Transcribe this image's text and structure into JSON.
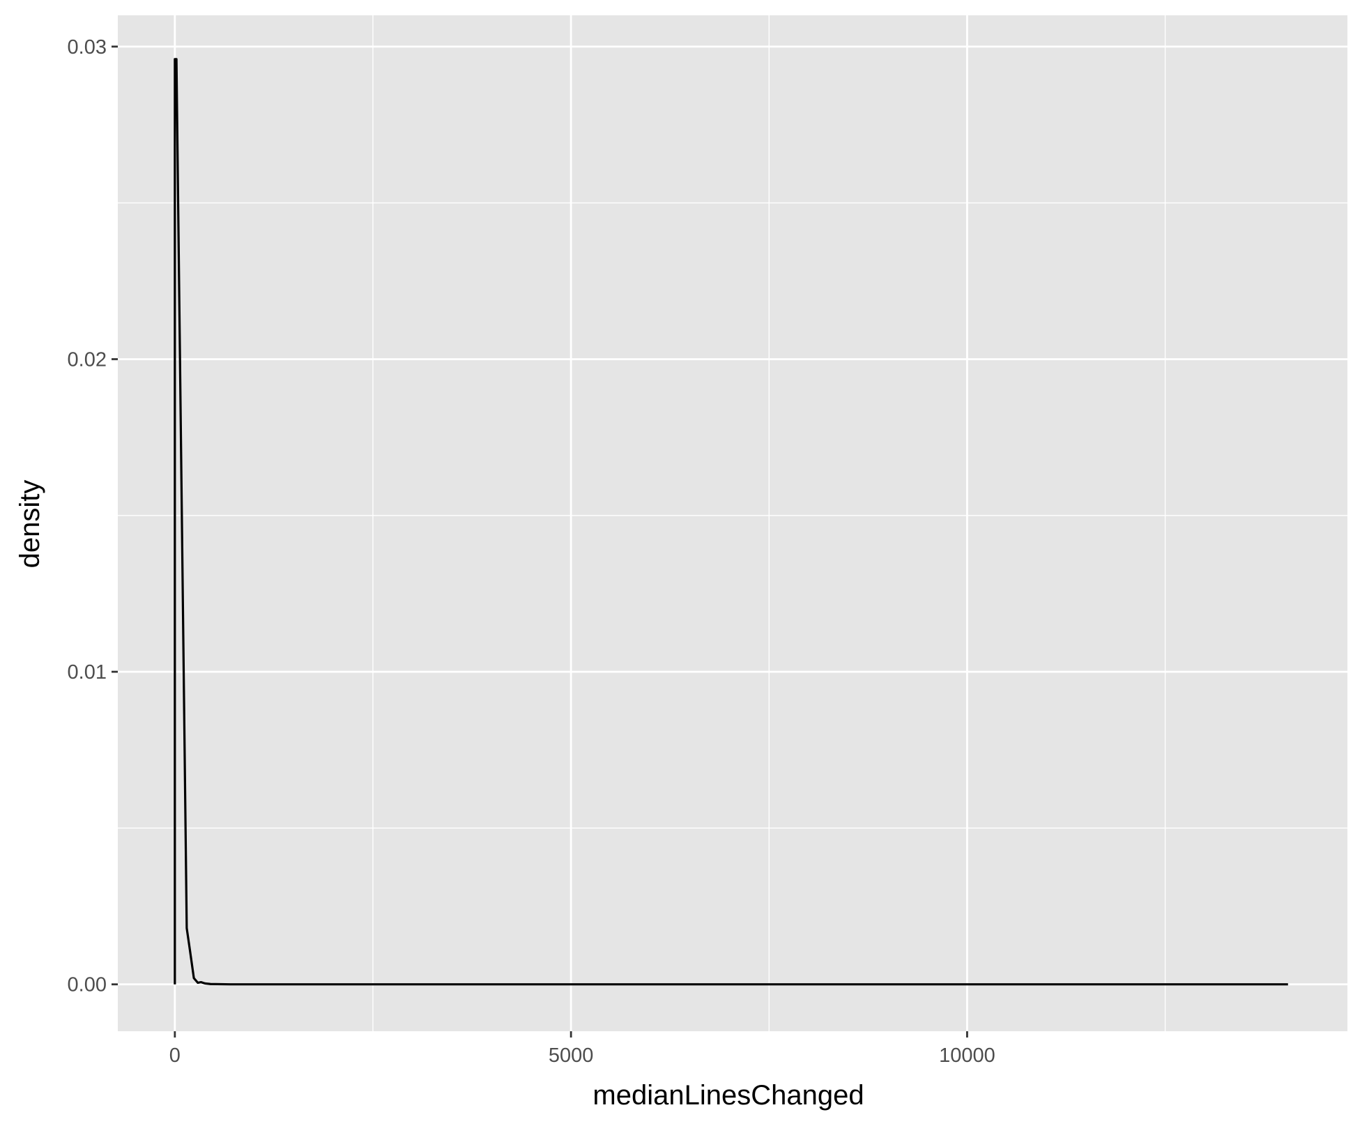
{
  "chart_data": {
    "type": "line",
    "geom": "density",
    "title": "",
    "xlabel": "medianLinesChanged",
    "ylabel": "density",
    "xlim": [
      -720,
      14800
    ],
    "ylim": [
      -0.0015,
      0.031
    ],
    "x_ticks": [
      0,
      5000,
      10000
    ],
    "x_tick_labels": [
      "0",
      "5000",
      "10000"
    ],
    "x_minor_ticks": [
      2500,
      7500,
      12500
    ],
    "y_ticks": [
      0,
      0.01,
      0.02,
      0.03
    ],
    "y_tick_labels": [
      "0.00",
      "0.01",
      "0.02",
      "0.03"
    ],
    "y_minor_ticks": [
      0.005,
      0.015,
      0.025
    ],
    "grid": true,
    "legend": "none",
    "series": [
      {
        "color": "#000000",
        "x": [
          0,
          0,
          20,
          150,
          190,
          240,
          290,
          330,
          380,
          450,
          700,
          14050,
          14050
        ],
        "y": [
          0,
          0.0296,
          0.0296,
          0.0018,
          0.0011,
          0.0002,
          5e-05,
          7e-05,
          3e-05,
          1e-05,
          0,
          0,
          0
        ]
      }
    ]
  },
  "style": {
    "panel_background": "#e5e5e5",
    "grid_color": "#ffffff",
    "line_color": "#000000",
    "tick_color": "#333333"
  }
}
